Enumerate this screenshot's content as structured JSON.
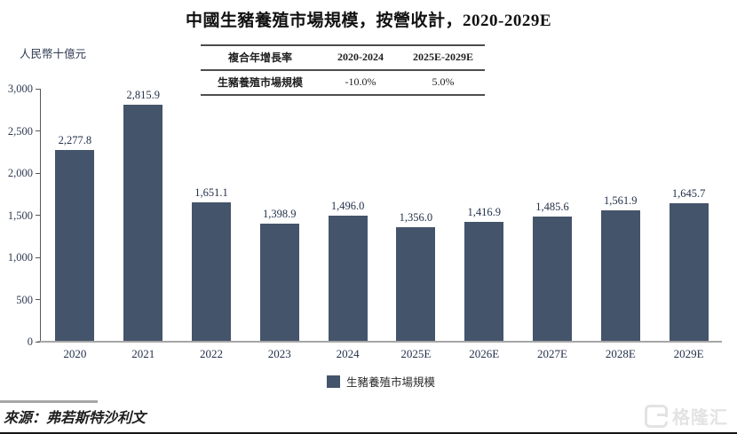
{
  "figure": {
    "title": "中國生豬養殖市場規模，按營收計，2020-2029E",
    "source": "來源：弗若斯特沙利文"
  },
  "cagr_table": {
    "headers": [
      "複合年增長率",
      "2020-2024",
      "2025E-2029E"
    ],
    "row": {
      "label": "生豬養殖市場規模",
      "cagr_2020_2024": "-10.0%",
      "cagr_2025e_2029e": "5.0%"
    }
  },
  "chart_data": {
    "type": "bar",
    "title": "中國生豬養殖市場規模，按營收計，2020-2029E",
    "ylabel": "人民幣十億元",
    "categories": [
      "2020",
      "2021",
      "2022",
      "2023",
      "2024",
      "2025E",
      "2026E",
      "2027E",
      "2028E",
      "2029E"
    ],
    "values": [
      2277.8,
      2815.9,
      1651.1,
      1398.9,
      1496.0,
      1356.0,
      1416.9,
      1485.6,
      1561.9,
      1645.7
    ],
    "value_labels": [
      "2,277.8",
      "2,815.9",
      "1,651.1",
      "1,398.9",
      "1,496.0",
      "1,356.0",
      "1,416.9",
      "1,485.6",
      "1,561.9",
      "1,645.7"
    ],
    "ylim": [
      0,
      3000
    ],
    "ytick_interval": 500,
    "ytick_labels": [
      "0",
      "500",
      "1,000",
      "1,500",
      "2,000",
      "2,500",
      "3,000"
    ],
    "grid": false,
    "bar_color": "#44546A",
    "legend": {
      "position": "bottom",
      "entries": [
        "生豬養殖市場規模"
      ]
    }
  },
  "watermark": {
    "icon": "gelonghui-logo",
    "text": "格隆汇"
  },
  "colors": {
    "bar": "#44546A",
    "axis_line": "#595959",
    "baseline": "#a6a6a6",
    "table_line": "#4d4d4d",
    "label_text": "#23314a",
    "watermark": "#e3e3e3"
  }
}
